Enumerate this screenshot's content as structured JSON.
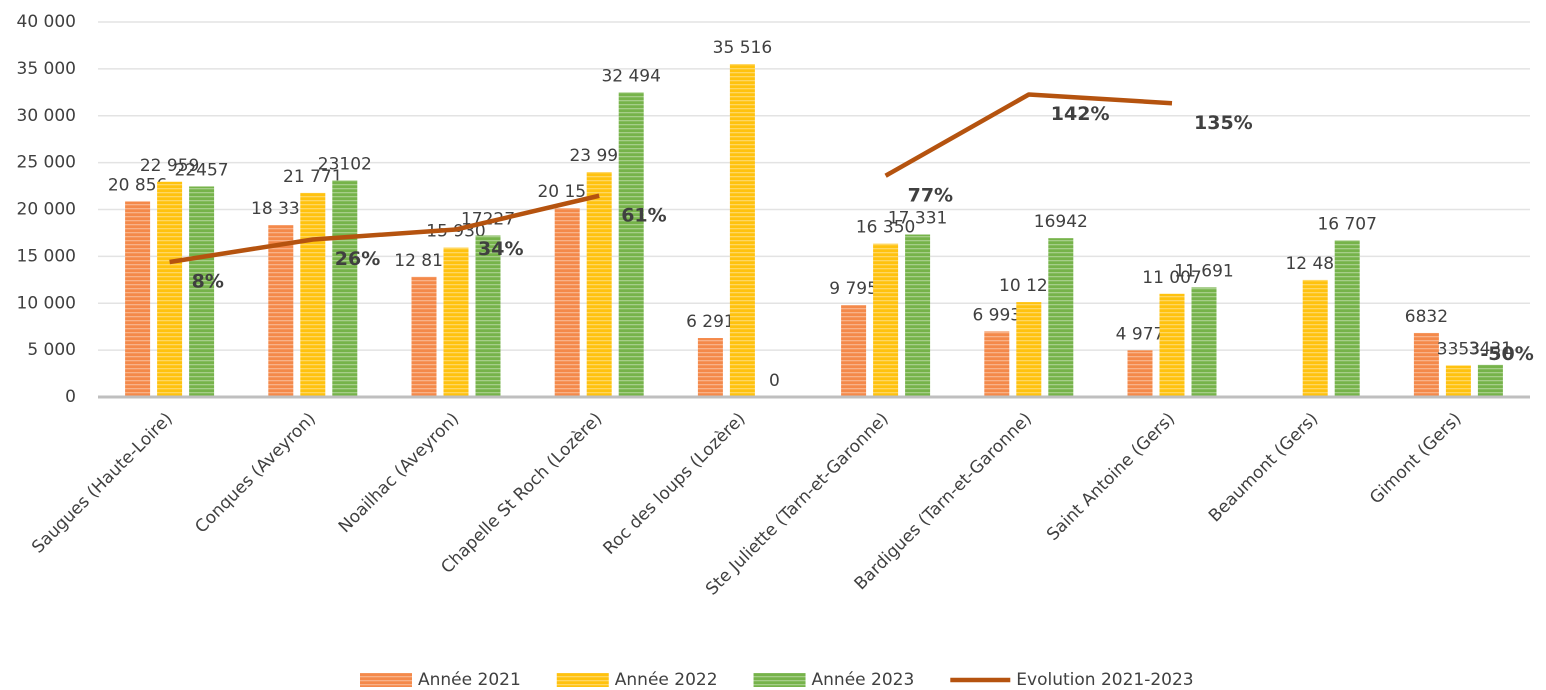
{
  "chart_data": {
    "type": "bar",
    "categories": [
      "Saugues (Haute-Loire)",
      "Conques (Aveyron)",
      "Noailhac (Aveyron)",
      "Chapelle St Roch (Lozère)",
      "Roc des loups (Lozère)",
      "Ste Juliette (Tarn-et-Garonne)",
      "Bardigues (Tarn-et-Garonne)",
      "Saint Antoine (Gers)",
      "Beaumont (Gers)",
      "Gimont (Gers)"
    ],
    "series": [
      {
        "name": "Année 2021",
        "color": "#f4894a",
        "values": [
          20856,
          18334,
          12818,
          20150,
          6291,
          9795,
          6993,
          4977,
          null,
          6832
        ],
        "value_labels": [
          "20 856",
          "18 334",
          "12 818",
          "20 150",
          "6 291",
          "9 795",
          "6 993",
          "4 977",
          null,
          "6832"
        ]
      },
      {
        "name": "Année 2022",
        "color": "#ffc20e",
        "values": [
          22959,
          21771,
          15930,
          23996,
          35516,
          16350,
          10122,
          11007,
          12487,
          3353
        ],
        "value_labels": [
          "22 959",
          "21 771",
          "15 930",
          "23 996",
          "35 516",
          "16 350",
          "10 122",
          "11 007",
          "12 487",
          "3353"
        ]
      },
      {
        "name": "Année 2023",
        "color": "#76b34a",
        "values": [
          22457,
          23102,
          17227,
          32494,
          0,
          17331,
          16942,
          11691,
          16707,
          3431
        ],
        "value_labels": [
          "22457",
          "23102",
          "17227",
          "32 494",
          "0",
          "17 331",
          "16942",
          "11 691",
          "16 707",
          "3431"
        ]
      },
      {
        "name": "Evolution 2021-2023",
        "type": "line",
        "axis": "y2",
        "color": "#b5530f",
        "values": [
          8,
          26,
          34,
          61,
          null,
          77,
          142,
          135,
          null,
          -50
        ],
        "value_labels": [
          "8%",
          "26%",
          "34%",
          "61%",
          null,
          "77%",
          "142%",
          "135%",
          null,
          "-50%"
        ]
      }
    ],
    "ylim": [
      0,
      40000
    ],
    "yticks": [
      0,
      {
        "value": 5000,
        "label": "5 000"
      },
      {
        "value": 10000,
        "label": "10 000"
      },
      {
        "value": 15000,
        "label": "15 000"
      },
      {
        "value": 20000,
        "label": "20 000"
      },
      {
        "value": 25000,
        "label": "25 000"
      },
      {
        "value": 30000,
        "label": "30 000"
      },
      {
        "value": 35000,
        "label": "35 000"
      },
      {
        "value": 40000,
        "label": "40 000"
      }
    ],
    "y2lim": [
      -100,
      200
    ],
    "grid": true,
    "legend": "bottom"
  }
}
